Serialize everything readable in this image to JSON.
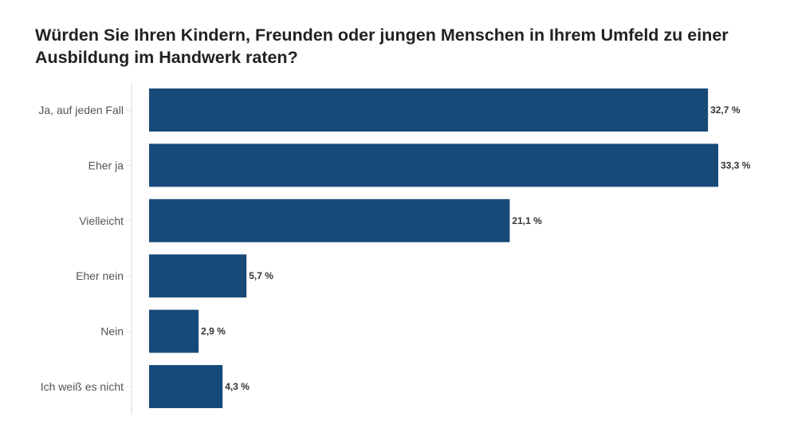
{
  "chart_data": {
    "type": "bar",
    "orientation": "horizontal",
    "title": "Würden Sie Ihren Kindern, Freunden oder jungen Menschen in Ihrem Umfeld zu einer Ausbildung im Handwerk raten?",
    "categories": [
      "Ja, auf jeden Fall",
      "Eher ja",
      "Vielleicht",
      "Eher nein",
      "Nein",
      "Ich weiß es nicht"
    ],
    "values": [
      32.7,
      33.3,
      21.1,
      5.7,
      2.9,
      4.3
    ],
    "data_labels": [
      "32,7 %",
      "33,3 %",
      "21,1 %",
      "5,7 %",
      "2,9 %",
      "4,3 %"
    ],
    "xlabel": "",
    "ylabel": "",
    "xlim": [
      0,
      33.3
    ],
    "grid": false,
    "bar_color": "#174a78"
  }
}
